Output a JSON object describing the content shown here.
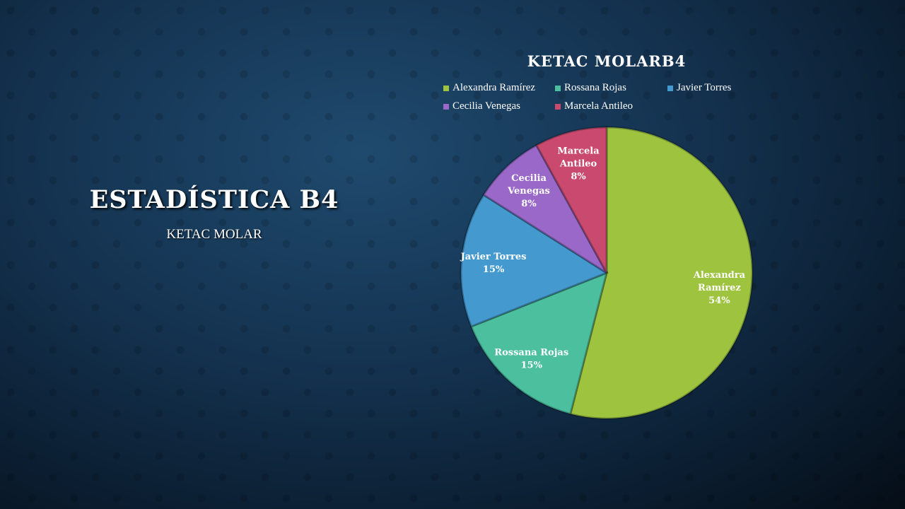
{
  "slide": {
    "title": "ESTADÍSTICA B4",
    "subtitle": "KETAC MOLAR"
  },
  "chart_data": {
    "type": "pie",
    "title": "KETAC MOLARB4",
    "legend_position": "top",
    "start_angle": "12 o'clock, clockwise",
    "slices": [
      {
        "name": "Alexandra Ramírez",
        "value": 54,
        "label_lines": [
          "Alexandra",
          "Ramírez",
          "54%"
        ],
        "color": "#9dc33f"
      },
      {
        "name": "Rossana Rojas",
        "value": 15,
        "label_lines": [
          "Rossana Rojas",
          "15%"
        ],
        "color": "#4bbf9e"
      },
      {
        "name": "Javier Torres",
        "value": 15,
        "label_lines": [
          "Javier Torres",
          "15%"
        ],
        "color": "#4499cf"
      },
      {
        "name": "Cecilia Venegas",
        "value": 8,
        "label_lines": [
          "Cecilia",
          "Venegas",
          "8%"
        ],
        "color": "#9a68c9"
      },
      {
        "name": "Marcela Antileo",
        "value": 8,
        "label_lines": [
          "Marcela",
          "Antileo",
          "8%"
        ],
        "color": "#c94a6e"
      }
    ]
  }
}
